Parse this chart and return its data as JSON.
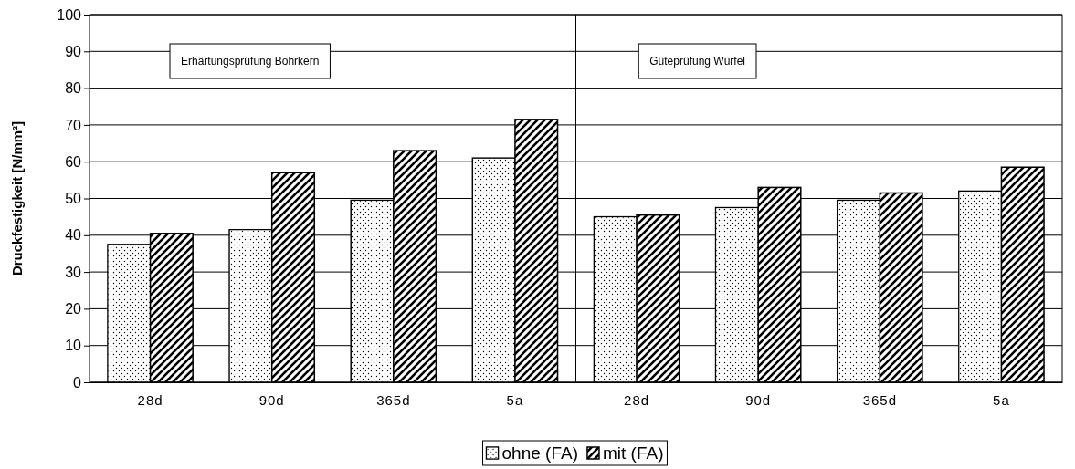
{
  "chart_data": {
    "type": "bar",
    "ylabel": "Druckfestigkeit [N/mm²]",
    "categories": [
      "28d",
      "90d",
      "365d",
      "5a",
      "28d",
      "90d",
      "365d",
      "5a"
    ],
    "series": [
      {
        "name": "ohne (FA)",
        "color": "#ffffff",
        "values": [
          37.5,
          41.5,
          49.5,
          61,
          45,
          47.5,
          49.5,
          52
        ]
      },
      {
        "name": "mit (FA)",
        "color": "#000000",
        "values": [
          40.5,
          57,
          63,
          71.5,
          45.5,
          53,
          51.5,
          58.5
        ]
      }
    ],
    "ylim": [
      0,
      100
    ],
    "yticks": [
      0,
      10,
      20,
      30,
      40,
      50,
      60,
      70,
      80,
      90,
      100
    ],
    "grid": "y",
    "legend": "bottom",
    "annotations": [
      "Erhärtungsprüfung Bohrkern",
      "Güteprüfung Würfel"
    ]
  }
}
